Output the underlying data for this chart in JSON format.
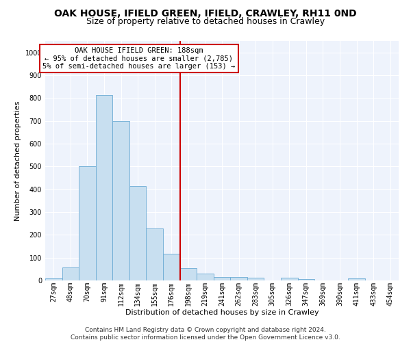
{
  "title": "OAK HOUSE, IFIELD GREEN, IFIELD, CRAWLEY, RH11 0ND",
  "subtitle": "Size of property relative to detached houses in Crawley",
  "xlabel": "Distribution of detached houses by size in Crawley",
  "ylabel": "Number of detached properties",
  "footer_line1": "Contains HM Land Registry data © Crown copyright and database right 2024.",
  "footer_line2": "Contains public sector information licensed under the Open Government Licence v3.0.",
  "bar_labels": [
    "27sqm",
    "48sqm",
    "70sqm",
    "91sqm",
    "112sqm",
    "134sqm",
    "155sqm",
    "176sqm",
    "198sqm",
    "219sqm",
    "241sqm",
    "262sqm",
    "283sqm",
    "305sqm",
    "326sqm",
    "347sqm",
    "369sqm",
    "390sqm",
    "411sqm",
    "433sqm",
    "454sqm"
  ],
  "bar_values": [
    8,
    57,
    500,
    812,
    700,
    415,
    227,
    117,
    55,
    30,
    15,
    15,
    12,
    0,
    12,
    7,
    0,
    0,
    8,
    0,
    0
  ],
  "bar_color": "#c8dff0",
  "bar_edge_color": "#6aaad4",
  "vline_x": 7.5,
  "vline_color": "#cc0000",
  "annotation_line1": "OAK HOUSE IFIELD GREEN: 188sqm",
  "annotation_line2": "← 95% of detached houses are smaller (2,785)",
  "annotation_line3": "5% of semi-detached houses are larger (153) →",
  "annotation_box_edgecolor": "#cc0000",
  "ylim": [
    0,
    1050
  ],
  "yticks": [
    0,
    100,
    200,
    300,
    400,
    500,
    600,
    700,
    800,
    900,
    1000
  ],
  "bg_color": "#eef3fc",
  "grid_color": "#ffffff",
  "fig_bg_color": "#ffffff",
  "title_fontsize": 10,
  "subtitle_fontsize": 9,
  "axis_label_fontsize": 8,
  "tick_fontsize": 7,
  "annotation_fontsize": 7.5,
  "footer_fontsize": 6.5
}
